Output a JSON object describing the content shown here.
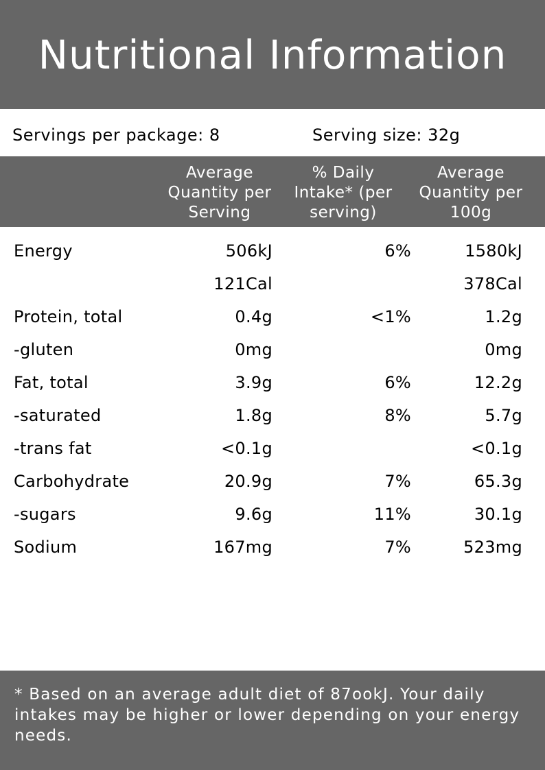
{
  "title": "Nutritional Information",
  "servings": {
    "per_package": "Servings per package: 8",
    "size": "Serving size: 32g"
  },
  "columns": {
    "avg_per_serving": "Average Quantity per Serving",
    "daily_intake": "% Daily Intake* (per serving)",
    "avg_per_100g": "Average Quantity per 100g"
  },
  "rows": [
    {
      "name": "Energy",
      "per_serving": "506kJ",
      "daily": "6%",
      "per_100g": "1580kJ"
    },
    {
      "name": "",
      "per_serving": "121Cal",
      "daily": "",
      "per_100g": "378Cal"
    },
    {
      "name": "Protein, total",
      "per_serving": "0.4g",
      "daily": "<1%",
      "per_100g": "1.2g"
    },
    {
      "name": "-gluten",
      "per_serving": "0mg",
      "daily": "",
      "per_100g": "0mg"
    },
    {
      "name": "Fat, total",
      "per_serving": "3.9g",
      "daily": "6%",
      "per_100g": "12.2g"
    },
    {
      "name": "-saturated",
      "per_serving": "1.8g",
      "daily": "8%",
      "per_100g": "5.7g"
    },
    {
      "name": "-trans fat",
      "per_serving": "<0.1g",
      "daily": "",
      "per_100g": "<0.1g"
    },
    {
      "name": "Carbohydrate",
      "per_serving": "20.9g",
      "daily": "7%",
      "per_100g": "65.3g"
    },
    {
      "name": "-sugars",
      "per_serving": "9.6g",
      "daily": "11%",
      "per_100g": "30.1g"
    },
    {
      "name": "Sodium",
      "per_serving": "167mg",
      "daily": "7%",
      "per_100g": "523mg"
    }
  ],
  "footnote": "* Based on an average adult diet of 87ookJ. Your daily intakes may be higher or lower depending on your energy needs.",
  "colors": {
    "bar": "#666666",
    "bar_text": "#ffffff",
    "background": "#ffffff"
  }
}
